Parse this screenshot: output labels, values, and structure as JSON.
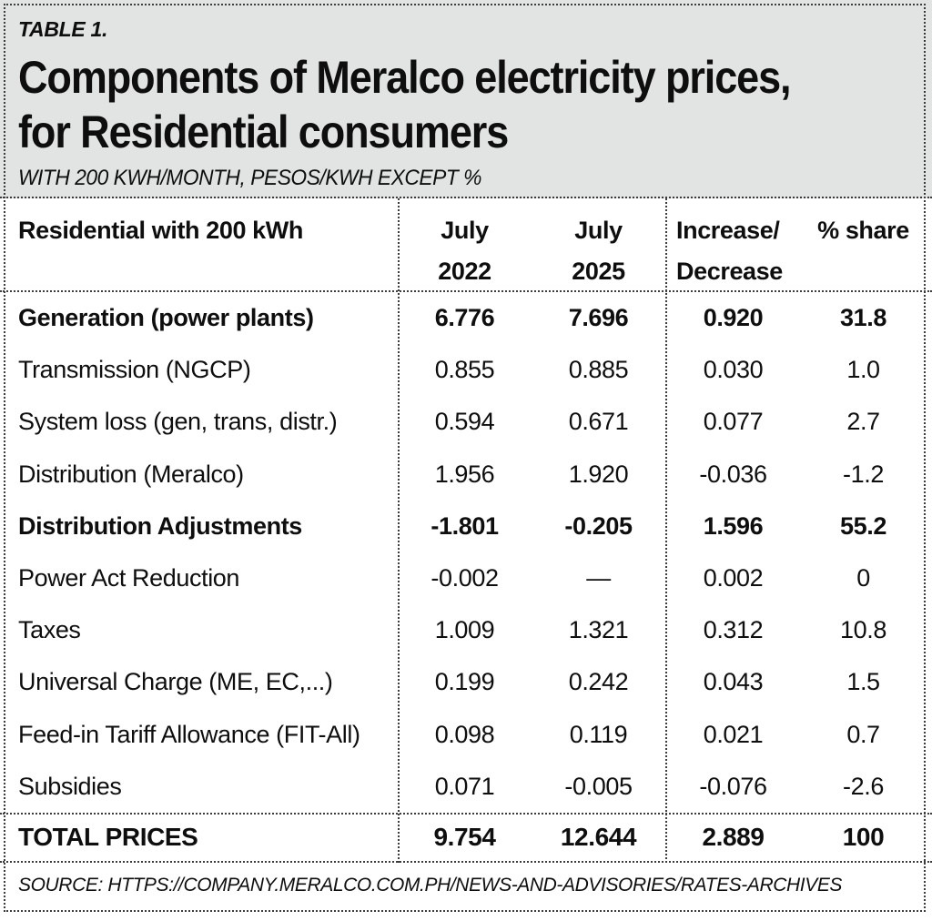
{
  "masthead": {
    "table_label": "TABLE 1.",
    "title_line1": "Components of Meralco electricity prices,",
    "title_line2": "for Residential consumers",
    "subtitle": "WITH 200 KWH/MONTH, PESOS/KWH EXCEPT %"
  },
  "table": {
    "header": {
      "row_label": "Residential with 200 kWh",
      "col1_line1": "July",
      "col1_line2": "2022",
      "col2_line1": "July",
      "col2_line2": "2025",
      "col3_line1": "Increase/",
      "col3_line2": "Decrease",
      "col4": "% share"
    },
    "rows": [
      {
        "label": "Generation (power plants)",
        "july2022": "6.776",
        "july2025": "7.696",
        "change": "0.920",
        "share": "31.8"
      },
      {
        "label": "Transmission (NGCP)",
        "july2022": "0.855",
        "july2025": "0.885",
        "change": "0.030",
        "share": "1.0"
      },
      {
        "label": "System loss (gen, trans, distr.)",
        "july2022": "0.594",
        "july2025": "0.671",
        "change": "0.077",
        "share": "2.7"
      },
      {
        "label": "Distribution (Meralco)",
        "july2022": "1.956",
        "july2025": "1.920",
        "change": "-0.036",
        "share": "-1.2"
      },
      {
        "label": "Distribution Adjustments",
        "july2022": "-1.801",
        "july2025": "-0.205",
        "change": "1.596",
        "share": "55.2"
      },
      {
        "label": "Power Act Reduction",
        "july2022": "-0.002",
        "july2025": "—",
        "change": "0.002",
        "share": "0"
      },
      {
        "label": "Taxes",
        "july2022": "1.009",
        "july2025": "1.321",
        "change": "0.312",
        "share": "10.8"
      },
      {
        "label": "Universal Charge (ME, EC,...)",
        "july2022": "0.199",
        "july2025": "0.242",
        "change": "0.043",
        "share": "1.5"
      },
      {
        "label": "Feed-in Tariff Allowance (FIT-All)",
        "july2022": "0.098",
        "july2025": "0.119",
        "change": "0.021",
        "share": "0.7"
      },
      {
        "label": "Subsidies",
        "july2022": "0.071",
        "july2025": "-0.005",
        "change": "-0.076",
        "share": "-2.6"
      }
    ],
    "total": {
      "label": "TOTAL PRICES",
      "july2022": "9.754",
      "july2025": "12.644",
      "change": "2.889",
      "share": "100"
    }
  },
  "source": "SOURCE: HTTPS://COMPANY.MERALCO.COM.PH/NEWS-AND-ADVISORIES/RATES-ARCHIVES",
  "colors": {
    "masthead_background": "#e2e3e3",
    "body_background": "#ffffff",
    "text": "#0e0e0e",
    "dotted_border": "#3c3c3c"
  },
  "chart_data": {
    "type": "table",
    "title": "Components of Meralco electricity prices, for Residential consumers",
    "table_number": "TABLE 1.",
    "subtitle": "WITH 200 KWH/MONTH, PESOS/KWH EXCEPT %",
    "columns": [
      "Residential with 200 kWh",
      "July 2022",
      "July 2025",
      "Increase/Decrease",
      "% share"
    ],
    "rows": [
      [
        "Generation (power plants)",
        6.776,
        7.696,
        0.92,
        31.8
      ],
      [
        "Transmission (NGCP)",
        0.855,
        0.885,
        0.03,
        1.0
      ],
      [
        "System loss (gen, trans, distr.)",
        0.594,
        0.671,
        0.077,
        2.7
      ],
      [
        "Distribution (Meralco)",
        1.956,
        1.92,
        -0.036,
        -1.2
      ],
      [
        "Distribution Adjustments",
        -1.801,
        -0.205,
        1.596,
        55.2
      ],
      [
        "Power Act Reduction",
        -0.002,
        null,
        0.002,
        0
      ],
      [
        "Taxes",
        1.009,
        1.321,
        0.312,
        10.8
      ],
      [
        "Universal Charge (ME, EC,...)",
        0.199,
        0.242,
        0.043,
        1.5
      ],
      [
        "Feed-in Tariff Allowance (FIT-All)",
        0.098,
        0.119,
        0.021,
        0.7
      ],
      [
        "Subsidies",
        0.071,
        -0.005,
        -0.076,
        -2.6
      ],
      [
        "TOTAL PRICES",
        9.754,
        12.644,
        2.889,
        100
      ]
    ],
    "emphasized_rows": [
      "Generation (power plants)",
      "Distribution Adjustments",
      "TOTAL PRICES"
    ],
    "source": "SOURCE: HTTPS://COMPANY.MERALCO.COM.PH/NEWS-AND-ADVISORIES/RATES-ARCHIVES"
  }
}
